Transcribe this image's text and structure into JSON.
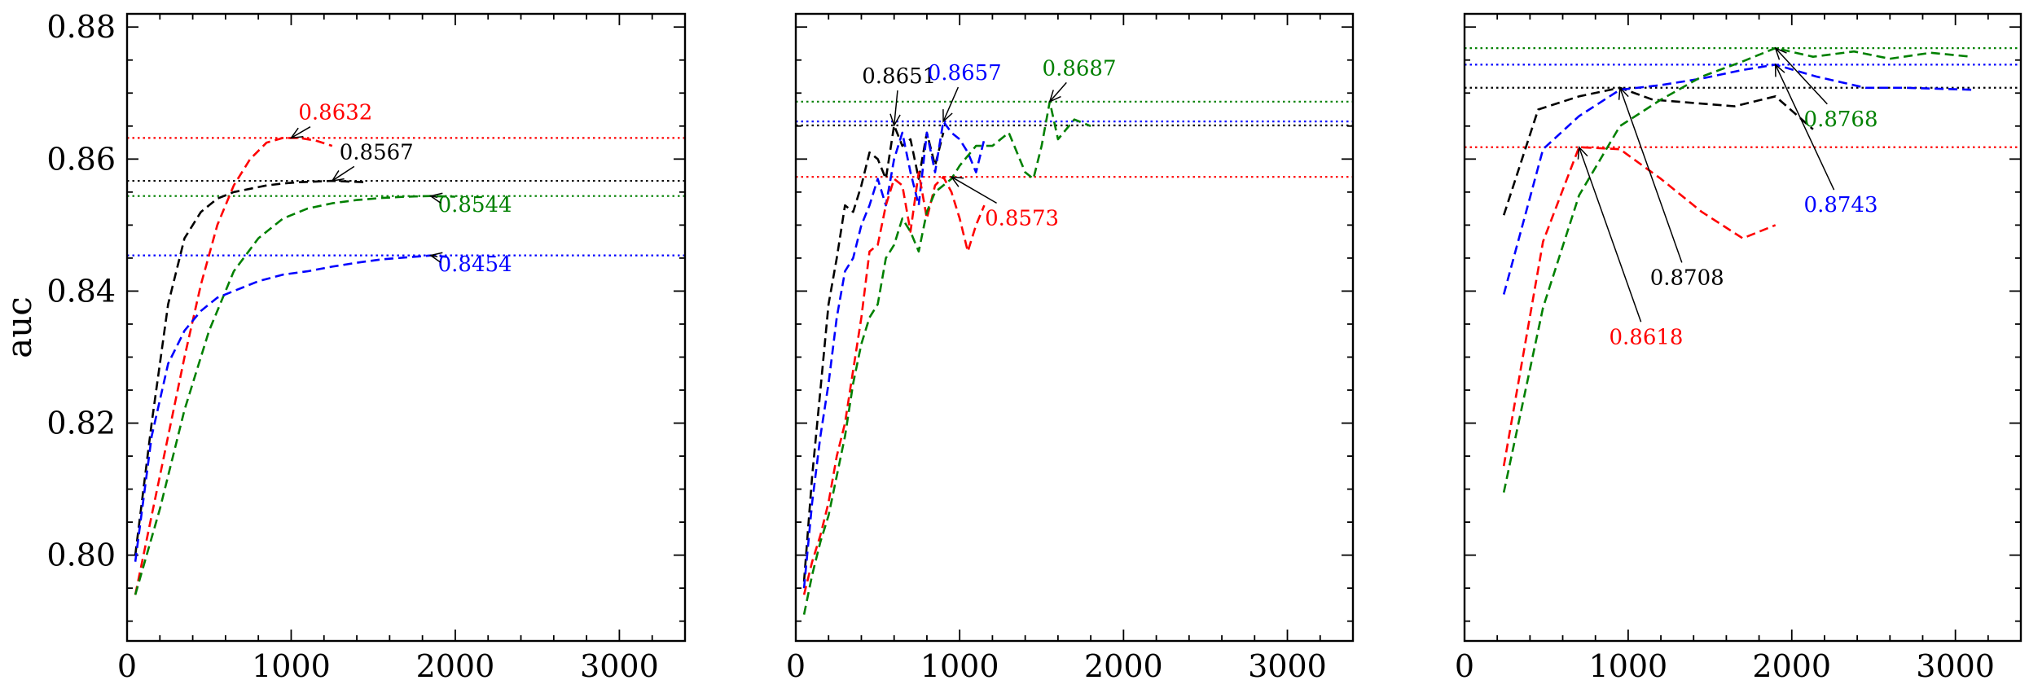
{
  "chart_data": [
    {
      "type": "line",
      "ylabel": "auc",
      "xlim": [
        0,
        3400
      ],
      "ylim": [
        0.787,
        0.882
      ],
      "xticks": [
        0,
        1000,
        2000,
        3000
      ],
      "xtick_labels": [
        "0",
        "1000",
        "2000",
        "3000"
      ],
      "yticks": [
        0.8,
        0.82,
        0.84,
        0.86,
        0.88
      ],
      "ytick_labels": [
        "0.80",
        "0.82",
        "0.84",
        "0.86",
        "0.88"
      ],
      "show_yticklabels": true,
      "series": [
        {
          "color": "#000000",
          "style": "dashed",
          "x": [
            50,
            150,
            250,
            350,
            450,
            550,
            650,
            750,
            850,
            950,
            1050,
            1150,
            1250,
            1350,
            1450
          ],
          "y": [
            0.8,
            0.82,
            0.838,
            0.848,
            0.852,
            0.854,
            0.855,
            0.8555,
            0.856,
            0.8563,
            0.8565,
            0.8566,
            0.8567,
            0.8566,
            0.8565
          ]
        },
        {
          "color": "#ff0000",
          "style": "dashed",
          "x": [
            50,
            150,
            250,
            350,
            450,
            550,
            650,
            750,
            850,
            950,
            1050,
            1150,
            1250
          ],
          "y": [
            0.794,
            0.806,
            0.818,
            0.83,
            0.841,
            0.85,
            0.856,
            0.86,
            0.8625,
            0.8632,
            0.8632,
            0.8628,
            0.862
          ]
        },
        {
          "color": "#008000",
          "style": "dashed",
          "x": [
            50,
            200,
            350,
            500,
            650,
            800,
            950,
            1100,
            1250,
            1400,
            1550,
            1700,
            1850,
            2000
          ],
          "y": [
            0.794,
            0.807,
            0.822,
            0.834,
            0.843,
            0.848,
            0.851,
            0.8525,
            0.8533,
            0.8538,
            0.8541,
            0.8543,
            0.8544,
            0.8543
          ]
        },
        {
          "color": "#0000ff",
          "style": "dashed",
          "x": [
            50,
            150,
            250,
            350,
            450,
            550,
            650,
            800,
            950,
            1100,
            1250,
            1400,
            1550,
            1700,
            1850,
            1950
          ],
          "y": [
            0.799,
            0.818,
            0.829,
            0.834,
            0.837,
            0.839,
            0.84,
            0.8415,
            0.8425,
            0.843,
            0.8437,
            0.8443,
            0.8448,
            0.8451,
            0.8454,
            0.8452
          ]
        }
      ],
      "hlines": [
        {
          "y": 0.8632,
          "color": "#ff0000",
          "style": "dotted"
        },
        {
          "y": 0.8567,
          "color": "#000000",
          "style": "dotted"
        },
        {
          "y": 0.8544,
          "color": "#008000",
          "style": "dotted"
        },
        {
          "y": 0.8454,
          "color": "#0000ff",
          "style": "dotted"
        }
      ],
      "annotations": [
        {
          "text": "0.8632",
          "color": "#ff0000",
          "xy": [
            1000,
            0.8632
          ],
          "xytext": [
            1270,
            0.866
          ]
        },
        {
          "text": "0.8567",
          "color": "#000000",
          "xy": [
            1250,
            0.8567
          ],
          "xytext": [
            1520,
            0.86
          ]
        },
        {
          "text": "0.8544",
          "color": "#008000",
          "xy": [
            1850,
            0.8544
          ],
          "xytext": [
            2120,
            0.852
          ]
        },
        {
          "text": "0.8454",
          "color": "#0000ff",
          "xy": [
            1850,
            0.8454
          ],
          "xytext": [
            2120,
            0.843
          ]
        }
      ]
    },
    {
      "type": "line",
      "ylabel": "",
      "xlim": [
        0,
        3400
      ],
      "ylim": [
        0.787,
        0.882
      ],
      "xticks": [
        0,
        1000,
        2000,
        3000
      ],
      "xtick_labels": [
        "0",
        "1000",
        "2000",
        "3000"
      ],
      "yticks": [
        0.8,
        0.82,
        0.84,
        0.86,
        0.88
      ],
      "ytick_labels": [],
      "show_yticklabels": false,
      "series": [
        {
          "color": "#000000",
          "style": "dashed",
          "x": [
            50,
            100,
            150,
            200,
            250,
            300,
            350,
            400,
            450,
            500,
            550,
            600,
            650,
            700,
            750,
            800,
            850,
            900
          ],
          "y": [
            0.796,
            0.812,
            0.825,
            0.838,
            0.845,
            0.853,
            0.852,
            0.856,
            0.861,
            0.86,
            0.857,
            0.8651,
            0.862,
            0.863,
            0.857,
            0.864,
            0.859,
            0.864
          ]
        },
        {
          "color": "#0000ff",
          "style": "dashed",
          "x": [
            50,
            100,
            150,
            200,
            250,
            300,
            350,
            400,
            450,
            500,
            550,
            600,
            650,
            700,
            750,
            800,
            850,
            900,
            950,
            1000,
            1050,
            1100,
            1150
          ],
          "y": [
            0.795,
            0.808,
            0.818,
            0.826,
            0.836,
            0.843,
            0.845,
            0.85,
            0.853,
            0.857,
            0.853,
            0.86,
            0.864,
            0.858,
            0.853,
            0.864,
            0.858,
            0.8657,
            0.864,
            0.863,
            0.861,
            0.858,
            0.863
          ]
        },
        {
          "color": "#ff0000",
          "style": "dashed",
          "x": [
            50,
            100,
            150,
            200,
            250,
            300,
            350,
            400,
            450,
            500,
            550,
            600,
            650,
            700,
            750,
            800,
            850,
            900,
            950,
            1000,
            1050,
            1100,
            1150
          ],
          "y": [
            0.794,
            0.799,
            0.803,
            0.808,
            0.815,
            0.82,
            0.828,
            0.836,
            0.846,
            0.847,
            0.853,
            0.857,
            0.856,
            0.849,
            0.858,
            0.851,
            0.856,
            0.8573,
            0.855,
            0.851,
            0.846,
            0.85,
            0.853
          ]
        },
        {
          "color": "#008000",
          "style": "dashed",
          "x": [
            50,
            100,
            150,
            200,
            250,
            300,
            350,
            400,
            450,
            500,
            550,
            600,
            650,
            700,
            750,
            800,
            850,
            900,
            950,
            1000,
            1100,
            1200,
            1300,
            1400,
            1450,
            1500,
            1550,
            1600,
            1700,
            1800
          ],
          "y": [
            0.791,
            0.797,
            0.802,
            0.806,
            0.812,
            0.818,
            0.826,
            0.832,
            0.836,
            0.838,
            0.845,
            0.847,
            0.851,
            0.849,
            0.846,
            0.852,
            0.855,
            0.856,
            0.857,
            0.859,
            0.862,
            0.862,
            0.864,
            0.858,
            0.857,
            0.862,
            0.8687,
            0.863,
            0.866,
            0.865
          ]
        }
      ],
      "hlines": [
        {
          "y": 0.8687,
          "color": "#008000",
          "style": "dotted"
        },
        {
          "y": 0.8657,
          "color": "#0000ff",
          "style": "dotted"
        },
        {
          "y": 0.8651,
          "color": "#000000",
          "style": "dotted"
        },
        {
          "y": 0.8573,
          "color": "#ff0000",
          "style": "dotted"
        }
      ],
      "annotations": [
        {
          "text": "0.8651",
          "color": "#000000",
          "xy": [
            600,
            0.8651
          ],
          "xytext": [
            630,
            0.8715
          ]
        },
        {
          "text": "0.8657",
          "color": "#0000ff",
          "xy": [
            900,
            0.8657
          ],
          "xytext": [
            1030,
            0.872
          ]
        },
        {
          "text": "0.8687",
          "color": "#008000",
          "xy": [
            1550,
            0.8687
          ],
          "xytext": [
            1730,
            0.8727
          ]
        },
        {
          "text": "0.8573",
          "color": "#ff0000",
          "xy": [
            950,
            0.8573
          ],
          "xytext": [
            1380,
            0.85
          ]
        }
      ]
    },
    {
      "type": "line",
      "ylabel": "",
      "xlim": [
        0,
        3400
      ],
      "ylim": [
        0.787,
        0.882
      ],
      "xticks": [
        0,
        1000,
        2000,
        3000
      ],
      "xtick_labels": [
        "0",
        "1000",
        "2000",
        "3000"
      ],
      "yticks": [
        0.8,
        0.82,
        0.84,
        0.86,
        0.88
      ],
      "ytick_labels": [],
      "show_yticklabels": false,
      "series": [
        {
          "color": "#000000",
          "style": "dashed",
          "x": [
            240,
            450,
            700,
            950,
            1150,
            1400,
            1650,
            1900,
            2130
          ],
          "y": [
            0.8515,
            0.8675,
            0.8695,
            0.8708,
            0.869,
            0.8685,
            0.868,
            0.8695,
            0.8645
          ]
        },
        {
          "color": "#0000ff",
          "style": "dashed",
          "x": [
            240,
            480,
            700,
            950,
            1200,
            1450,
            1700,
            1900,
            2150,
            2450,
            2700,
            3100
          ],
          "y": [
            0.8395,
            0.8615,
            0.8665,
            0.8705,
            0.8712,
            0.8722,
            0.8735,
            0.8743,
            0.8725,
            0.8708,
            0.8708,
            0.8705
          ]
        },
        {
          "color": "#ff0000",
          "style": "dashed",
          "x": [
            240,
            480,
            700,
            950,
            1200,
            1450,
            1700,
            1900
          ],
          "y": [
            0.8135,
            0.8475,
            0.8618,
            0.8615,
            0.857,
            0.852,
            0.848,
            0.85
          ]
        },
        {
          "color": "#008000",
          "style": "dashed",
          "x": [
            240,
            480,
            700,
            950,
            1200,
            1450,
            1700,
            1900,
            2130,
            2380,
            2600,
            2850,
            3100
          ],
          "y": [
            0.8095,
            0.8375,
            0.8545,
            0.865,
            0.869,
            0.8725,
            0.8748,
            0.8768,
            0.8755,
            0.8763,
            0.8752,
            0.8761,
            0.8755
          ]
        }
      ],
      "hlines": [
        {
          "y": 0.8768,
          "color": "#008000",
          "style": "dotted"
        },
        {
          "y": 0.8743,
          "color": "#0000ff",
          "style": "dotted"
        },
        {
          "y": 0.8708,
          "color": "#000000",
          "style": "dotted"
        },
        {
          "y": 0.8618,
          "color": "#ff0000",
          "style": "dotted"
        }
      ],
      "annotations": [
        {
          "text": "0.8768",
          "color": "#008000",
          "xy": [
            1900,
            0.8768
          ],
          "xytext": [
            2300,
            0.865
          ]
        },
        {
          "text": "0.8743",
          "color": "#0000ff",
          "xy": [
            1900,
            0.8743
          ],
          "xytext": [
            2300,
            0.852
          ]
        },
        {
          "text": "0.8708",
          "color": "#000000",
          "xy": [
            950,
            0.8708
          ],
          "xytext": [
            1360,
            0.841
          ]
        },
        {
          "text": "0.8618",
          "color": "#ff0000",
          "xy": [
            700,
            0.8618
          ],
          "xytext": [
            1110,
            0.832
          ]
        }
      ]
    }
  ]
}
